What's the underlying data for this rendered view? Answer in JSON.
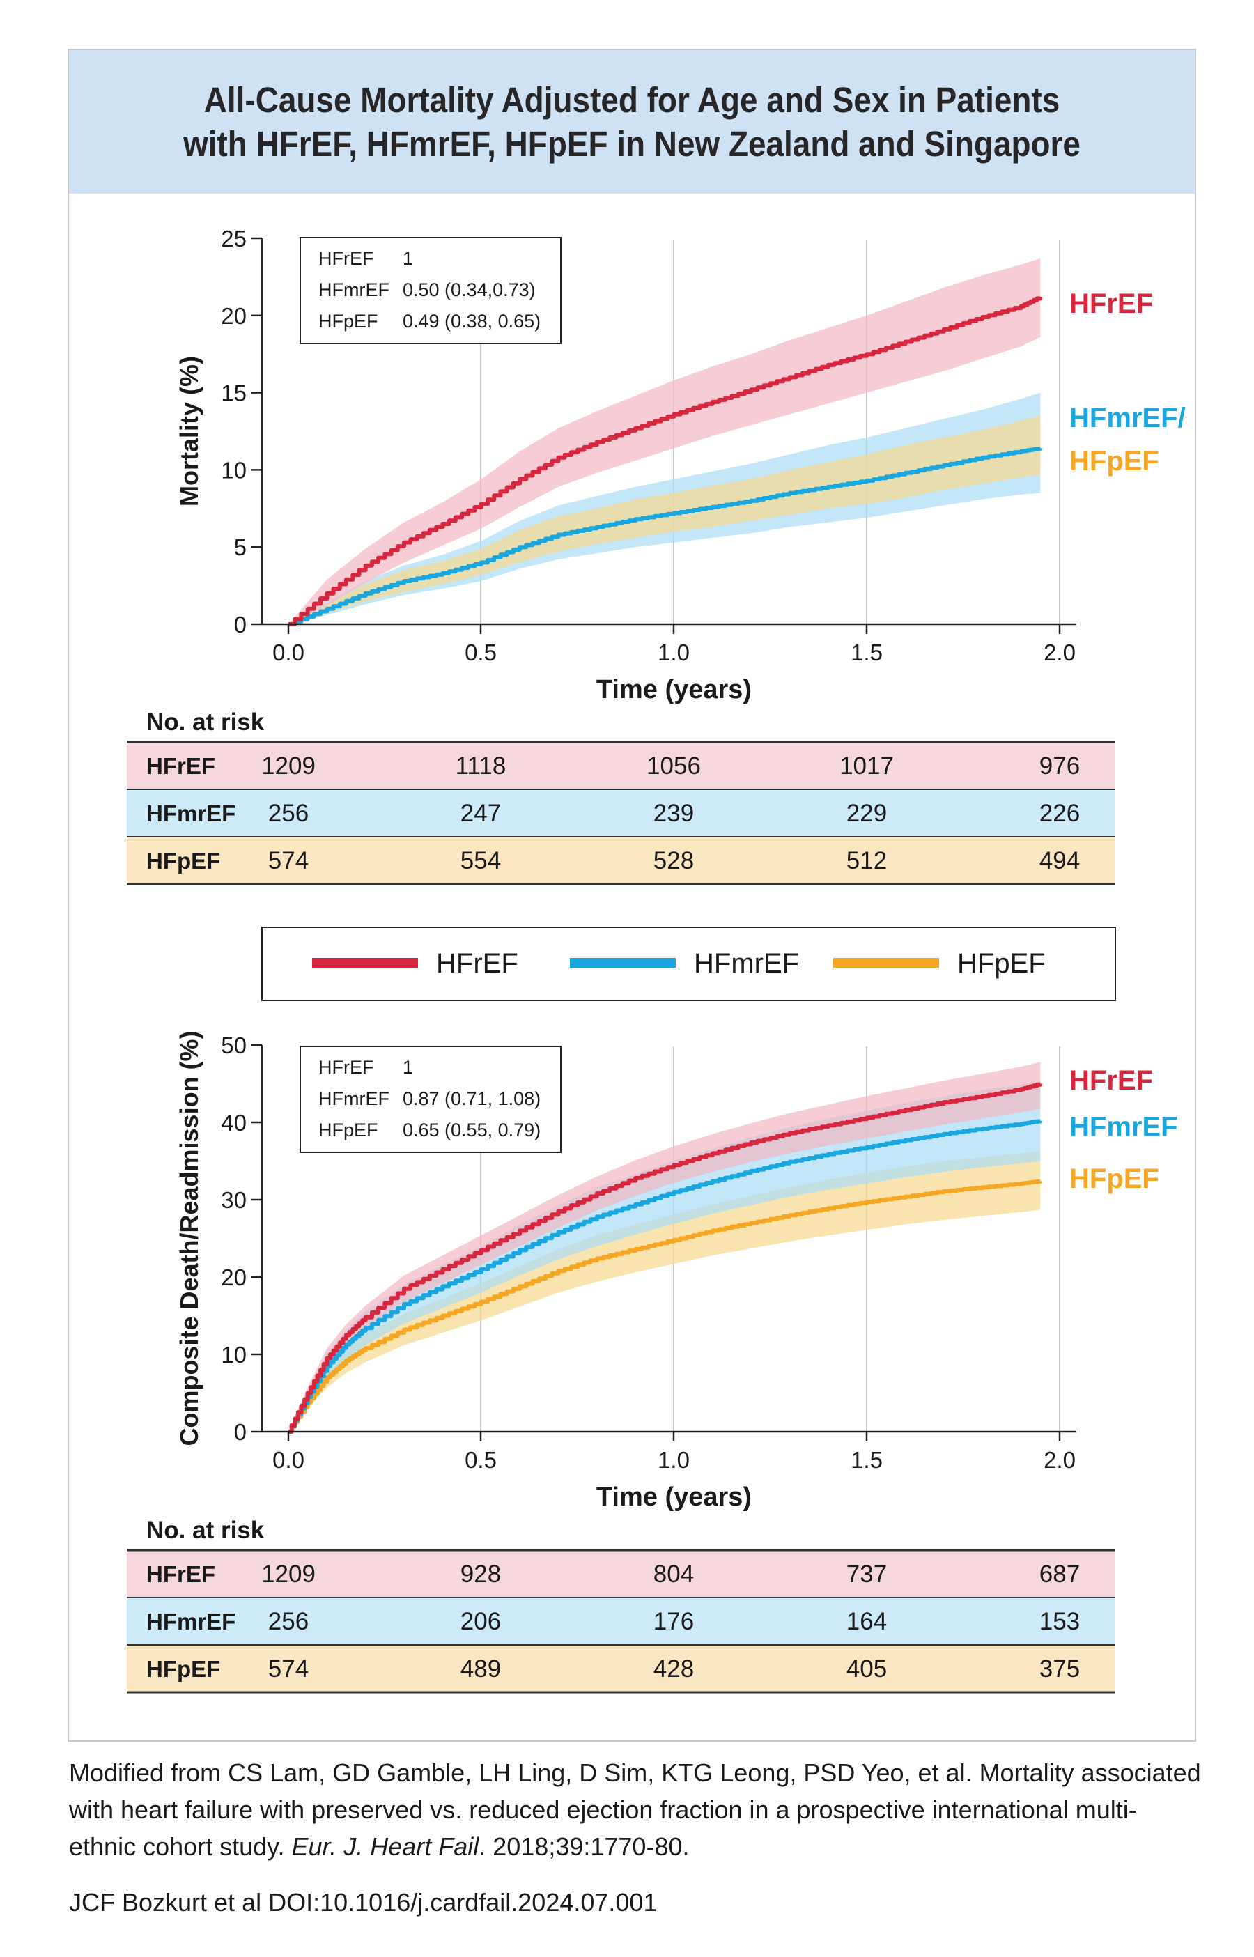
{
  "figure_title": {
    "line1": "All-Cause Mortality Adjusted for Age and Sex in Patients",
    "line2": "with HFrEF, HFmrEF, HFpEF in New Zealand and Singapore"
  },
  "colors": {
    "HFrEF": "#d7263d",
    "HFmrEF": "#1aa7e0",
    "HFpEF": "#f5a623",
    "HFrEF_band": "#f2b8c2",
    "HFmrEF_band": "#a9dcf5",
    "HFpEF_band": "#f7d98f",
    "row_HFrEF": "#f6d7dd",
    "row_HFmrEF": "#cdeaf8",
    "row_HFpEF": "#fbe6c2"
  },
  "legend": [
    "HFrEF",
    "HFmrEF",
    "HFpEF"
  ],
  "chart_data": [
    {
      "type": "line",
      "title": "All-Cause Mortality Adjusted for Age and Sex in Patients with HFrEF, HFmrEF, HFpEF in New Zealand and Singapore",
      "xlabel": "Time (years)",
      "ylabel": "Mortality (%)",
      "xlim": [
        0,
        2.0
      ],
      "ylim": [
        0,
        25
      ],
      "xticks": [
        "0.0",
        "0.5",
        "1.0",
        "1.5",
        "2.0"
      ],
      "yticks": [
        "0",
        "5",
        "10",
        "15",
        "20",
        "25"
      ],
      "hazard_box": [
        {
          "group": "HFrEF",
          "value": "1"
        },
        {
          "group": "HFmrEF",
          "value": "0.50 (0.34,0.73)"
        },
        {
          "group": "HFpEF",
          "value": "0.49 (0.38, 0.65)"
        }
      ],
      "end_labels": [
        {
          "text": "HFrEF",
          "color_key": "HFrEF",
          "y": 20.8
        },
        {
          "text": "HFmrEF/",
          "color_key": "HFmrEF",
          "y": 13.4
        },
        {
          "text": "HFpEF",
          "color_key": "HFpEF",
          "y": 10.6
        }
      ],
      "series": [
        {
          "name": "HFrEF",
          "color_key": "HFrEF",
          "x": [
            0,
            0.1,
            0.2,
            0.3,
            0.4,
            0.5,
            0.6,
            0.7,
            0.8,
            0.9,
            1.0,
            1.1,
            1.2,
            1.3,
            1.4,
            1.5,
            1.6,
            1.7,
            1.8,
            1.9,
            1.95
          ],
          "y": [
            0,
            2.0,
            3.8,
            5.3,
            6.5,
            7.8,
            9.4,
            10.8,
            11.8,
            12.7,
            13.6,
            14.4,
            15.2,
            16.0,
            16.8,
            17.5,
            18.3,
            19.1,
            19.9,
            20.6,
            21.2
          ],
          "lower": [
            0,
            1.2,
            2.7,
            4.0,
            5.1,
            6.2,
            7.6,
            8.9,
            9.8,
            10.6,
            11.4,
            12.2,
            12.9,
            13.6,
            14.3,
            15.0,
            15.7,
            16.4,
            17.2,
            18.0,
            18.6
          ],
          "upper": [
            0,
            2.9,
            4.9,
            6.6,
            7.9,
            9.4,
            11.2,
            12.7,
            13.8,
            14.8,
            15.8,
            16.7,
            17.5,
            18.4,
            19.2,
            20.0,
            20.9,
            21.8,
            22.6,
            23.3,
            23.7
          ]
        },
        {
          "name": "HFmrEF/HFpEF",
          "color_key": "HFmrEF",
          "x": [
            0,
            0.1,
            0.2,
            0.3,
            0.4,
            0.5,
            0.6,
            0.7,
            0.8,
            0.9,
            1.0,
            1.1,
            1.2,
            1.3,
            1.4,
            1.5,
            1.6,
            1.7,
            1.8,
            1.9,
            1.95
          ],
          "y": [
            0,
            1.0,
            2.0,
            2.8,
            3.3,
            4.0,
            5.0,
            5.8,
            6.3,
            6.8,
            7.2,
            7.6,
            8.0,
            8.5,
            8.9,
            9.3,
            9.8,
            10.3,
            10.8,
            11.2,
            11.4
          ],
          "lower": [
            0,
            0.6,
            1.3,
            1.9,
            2.3,
            2.8,
            3.6,
            4.2,
            4.6,
            5.0,
            5.3,
            5.6,
            5.9,
            6.3,
            6.6,
            6.9,
            7.3,
            7.7,
            8.1,
            8.4,
            8.5
          ],
          "upper": [
            0,
            1.4,
            2.8,
            3.8,
            4.5,
            5.4,
            6.7,
            7.7,
            8.3,
            8.9,
            9.4,
            9.9,
            10.4,
            11.0,
            11.6,
            12.1,
            12.7,
            13.3,
            13.9,
            14.6,
            15.0
          ]
        },
        {
          "name": "HFpEF band",
          "color_key": "HFpEF",
          "x": [
            0,
            0.1,
            0.2,
            0.3,
            0.4,
            0.5,
            0.6,
            0.7,
            0.8,
            0.9,
            1.0,
            1.1,
            1.2,
            1.3,
            1.4,
            1.5,
            1.6,
            1.7,
            1.8,
            1.9,
            1.95
          ],
          "y": [
            0,
            1.0,
            2.0,
            2.8,
            3.3,
            4.0,
            5.0,
            5.8,
            6.3,
            6.8,
            7.2,
            7.6,
            8.0,
            8.5,
            8.9,
            9.3,
            9.8,
            10.3,
            10.8,
            11.2,
            11.4
          ],
          "lower": [
            0,
            0.7,
            1.5,
            2.1,
            2.6,
            3.2,
            4.0,
            4.7,
            5.2,
            5.6,
            6.0,
            6.3,
            6.7,
            7.1,
            7.5,
            7.8,
            8.2,
            8.7,
            9.1,
            9.5,
            9.7
          ],
          "upper": [
            0,
            1.3,
            2.6,
            3.5,
            4.1,
            4.9,
            6.1,
            7.0,
            7.5,
            8.1,
            8.5,
            9.0,
            9.4,
            10.0,
            10.5,
            11.0,
            11.6,
            12.1,
            12.6,
            13.2,
            13.5
          ]
        }
      ],
      "risk_table": {
        "label": "No. at risk",
        "rows": [
          {
            "group": "HFrEF",
            "values": [
              "1209",
              "1118",
              "1056",
              "1017",
              "976"
            ]
          },
          {
            "group": "HFmrEF",
            "values": [
              "256",
              "247",
              "239",
              "229",
              "226"
            ]
          },
          {
            "group": "HFpEF",
            "values": [
              "574",
              "554",
              "528",
              "512",
              "494"
            ]
          }
        ]
      }
    },
    {
      "type": "line",
      "xlabel": "Time (years)",
      "ylabel": "Composite Death/Readmission (%)",
      "xlim": [
        0,
        2.0
      ],
      "ylim": [
        0,
        50
      ],
      "xticks": [
        "0.0",
        "0.5",
        "1.0",
        "1.5",
        "2.0"
      ],
      "yticks": [
        "0",
        "10",
        "20",
        "30",
        "40",
        "50"
      ],
      "hazard_box": [
        {
          "group": "HFrEF",
          "value": "1"
        },
        {
          "group": "HFmrEF",
          "value": "0.87 (0.71, 1.08)"
        },
        {
          "group": "HFpEF",
          "value": "0.65 (0.55, 0.79)"
        }
      ],
      "end_labels": [
        {
          "text": "HFrEF",
          "color_key": "HFrEF",
          "y": 45.5
        },
        {
          "text": "HFmrEF",
          "color_key": "HFmrEF",
          "y": 39.5
        },
        {
          "text": "HFpEF",
          "color_key": "HFpEF",
          "y": 32.8
        }
      ],
      "series": [
        {
          "name": "HFrEF",
          "color_key": "HFrEF",
          "x": [
            0,
            0.05,
            0.1,
            0.15,
            0.2,
            0.3,
            0.4,
            0.5,
            0.6,
            0.7,
            0.8,
            0.9,
            1.0,
            1.1,
            1.2,
            1.3,
            1.4,
            1.5,
            1.6,
            1.7,
            1.8,
            1.9,
            1.95
          ],
          "y": [
            0,
            5.0,
            9.5,
            12.5,
            14.8,
            18.5,
            21.0,
            23.5,
            26.0,
            28.5,
            30.8,
            32.8,
            34.5,
            36.0,
            37.4,
            38.6,
            39.6,
            40.6,
            41.6,
            42.6,
            43.4,
            44.3,
            45.0
          ],
          "lower": [
            0,
            4.2,
            8.3,
            11.2,
            13.3,
            16.8,
            19.2,
            21.6,
            24.0,
            26.4,
            28.6,
            30.5,
            32.2,
            33.6,
            34.9,
            36.0,
            37.0,
            37.9,
            38.8,
            39.7,
            40.5,
            41.3,
            41.8
          ],
          "upper": [
            0,
            5.8,
            10.8,
            13.9,
            16.3,
            20.2,
            22.8,
            25.4,
            28.0,
            30.6,
            33.0,
            35.1,
            36.9,
            38.5,
            39.9,
            41.2,
            42.3,
            43.4,
            44.4,
            45.4,
            46.3,
            47.2,
            47.8
          ]
        },
        {
          "name": "HFmrEF",
          "color_key": "HFmrEF",
          "x": [
            0,
            0.05,
            0.1,
            0.15,
            0.2,
            0.3,
            0.4,
            0.5,
            0.6,
            0.7,
            0.8,
            0.9,
            1.0,
            1.1,
            1.2,
            1.3,
            1.4,
            1.5,
            1.6,
            1.7,
            1.8,
            1.9,
            1.95
          ],
          "y": [
            0,
            4.5,
            8.5,
            11.3,
            13.4,
            16.5,
            18.8,
            21.0,
            23.5,
            25.8,
            27.8,
            29.4,
            31.0,
            32.4,
            33.7,
            34.9,
            35.9,
            36.8,
            37.7,
            38.5,
            39.2,
            39.8,
            40.2
          ],
          "lower": [
            0,
            3.6,
            7.0,
            9.4,
            11.2,
            14.0,
            16.0,
            18.0,
            20.2,
            22.3,
            24.0,
            25.5,
            26.9,
            28.2,
            29.3,
            30.4,
            31.3,
            32.1,
            32.9,
            33.6,
            34.2,
            34.7,
            35.0
          ],
          "upper": [
            0,
            5.4,
            10.0,
            13.2,
            15.6,
            19.0,
            21.6,
            24.0,
            26.8,
            29.3,
            31.6,
            33.3,
            35.1,
            36.6,
            38.1,
            39.4,
            40.5,
            41.5,
            42.5,
            43.4,
            44.2,
            44.9,
            45.4
          ]
        },
        {
          "name": "HFpEF",
          "color_key": "HFpEF",
          "x": [
            0,
            0.05,
            0.1,
            0.15,
            0.2,
            0.3,
            0.4,
            0.5,
            0.6,
            0.7,
            0.8,
            0.9,
            1.0,
            1.1,
            1.2,
            1.3,
            1.4,
            1.5,
            1.6,
            1.7,
            1.8,
            1.9,
            1.95
          ],
          "y": [
            0,
            3.8,
            7.0,
            9.2,
            10.8,
            13.2,
            15.0,
            16.8,
            18.8,
            20.8,
            22.4,
            23.6,
            24.8,
            26.0,
            27.0,
            28.0,
            28.9,
            29.7,
            30.4,
            31.1,
            31.6,
            32.1,
            32.4
          ],
          "lower": [
            0,
            3.0,
            5.7,
            7.6,
            9.0,
            11.2,
            12.8,
            14.4,
            16.2,
            18.0,
            19.4,
            20.6,
            21.7,
            22.8,
            23.7,
            24.6,
            25.4,
            26.1,
            26.8,
            27.4,
            27.9,
            28.4,
            28.7
          ],
          "upper": [
            0,
            4.6,
            8.3,
            10.8,
            12.6,
            15.2,
            17.2,
            19.2,
            21.4,
            23.6,
            25.4,
            26.8,
            28.1,
            29.4,
            30.5,
            31.6,
            32.6,
            33.5,
            34.3,
            35.0,
            35.5,
            36.0,
            36.3
          ]
        }
      ],
      "risk_table": {
        "label": "No. at risk",
        "rows": [
          {
            "group": "HFrEF",
            "values": [
              "1209",
              "928",
              "804",
              "737",
              "687"
            ]
          },
          {
            "group": "HFmrEF",
            "values": [
              "256",
              "206",
              "176",
              "164",
              "153"
            ]
          },
          {
            "group": "HFpEF",
            "values": [
              "574",
              "489",
              "428",
              "405",
              "375"
            ]
          }
        ]
      }
    }
  ],
  "source": {
    "line1": "Modified from CS Lam, GD Gamble, LH Ling, D Sim, KTG Leong, PSD Yeo, et al. Mortality associated",
    "line2": "with heart failure with preserved vs. reduced ejection fraction in a prospective international multi-",
    "line3_pre": "ethnic cohort study. ",
    "line3_journal": "Eur. J. Heart Fail",
    "line3_post": ". 2018;39:1770-80.",
    "credit": "JCF Bozkurt et al  DOI:10.1016/j.cardfail.2024.07.001"
  }
}
